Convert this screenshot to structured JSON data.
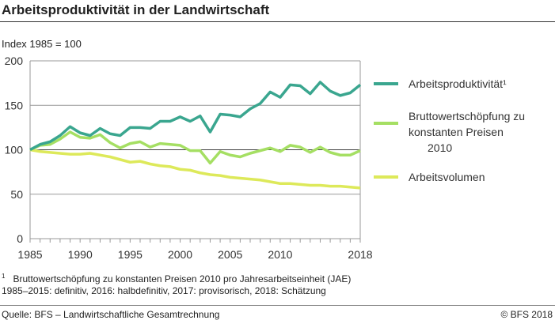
{
  "title": "Arbeitsproduktivität in der Landwirtschaft",
  "footnotes": {
    "marker": "1",
    "note1": "Bruttowertschöpfung zu konstanten Preisen 2010 pro Jahresarbeitseinheit (JAE)",
    "note2": "1985–2015: definitiv, 2016: halbdefinitiv, 2017: provisorisch, 2018: Schätzung"
  },
  "source": "Quelle: BFS – Landwirtschaftliche Gesamtrechnung",
  "copyright": "© BFS  2018",
  "chart_data": {
    "type": "line",
    "ylabel": "Index 1985 = 100",
    "ylim": [
      0,
      200
    ],
    "yticks": [
      "0",
      "50",
      "100",
      "150",
      "200"
    ],
    "xlim": [
      1985,
      2018
    ],
    "xticks": [
      "1985",
      "1990",
      "1995",
      "2000",
      "2005",
      "2010",
      "2018"
    ],
    "grid": true,
    "legend_position": "right",
    "x": [
      1985,
      1986,
      1987,
      1988,
      1989,
      1990,
      1991,
      1992,
      1993,
      1994,
      1995,
      1996,
      1997,
      1998,
      1999,
      2000,
      2001,
      2002,
      2003,
      2004,
      2005,
      2006,
      2007,
      2008,
      2009,
      2010,
      2011,
      2012,
      2013,
      2014,
      2015,
      2016,
      2017,
      2018
    ],
    "series": [
      {
        "name": "Arbeitsproduktivität¹",
        "color": "#3aa68f",
        "values": [
          100,
          106,
          109,
          116,
          126,
          119,
          116,
          124,
          118,
          116,
          125,
          125,
          124,
          132,
          132,
          137,
          132,
          138,
          120,
          140,
          139,
          137,
          146,
          152,
          165,
          159,
          173,
          172,
          163,
          176,
          166,
          161,
          164,
          173
        ]
      },
      {
        "name": "Bruttowertschöpfung zu konstanten Preisen 2010",
        "color": "#a5df63",
        "values": [
          100,
          105,
          106,
          112,
          120,
          114,
          113,
          117,
          108,
          102,
          107,
          109,
          103,
          107,
          106,
          105,
          99,
          99,
          85,
          98,
          94,
          92,
          96,
          99,
          102,
          98,
          105,
          103,
          97,
          103,
          97,
          94,
          94,
          99
        ]
      },
      {
        "name": "Arbeitsvolumen",
        "color": "#dde95a",
        "values": [
          100,
          98,
          97,
          96,
          95,
          95,
          96,
          94,
          92,
          89,
          86,
          87,
          84,
          82,
          81,
          78,
          77,
          74,
          72,
          71,
          69,
          68,
          67,
          66,
          64,
          62,
          62,
          61,
          60,
          60,
          59,
          59,
          58,
          57
        ]
      }
    ]
  }
}
